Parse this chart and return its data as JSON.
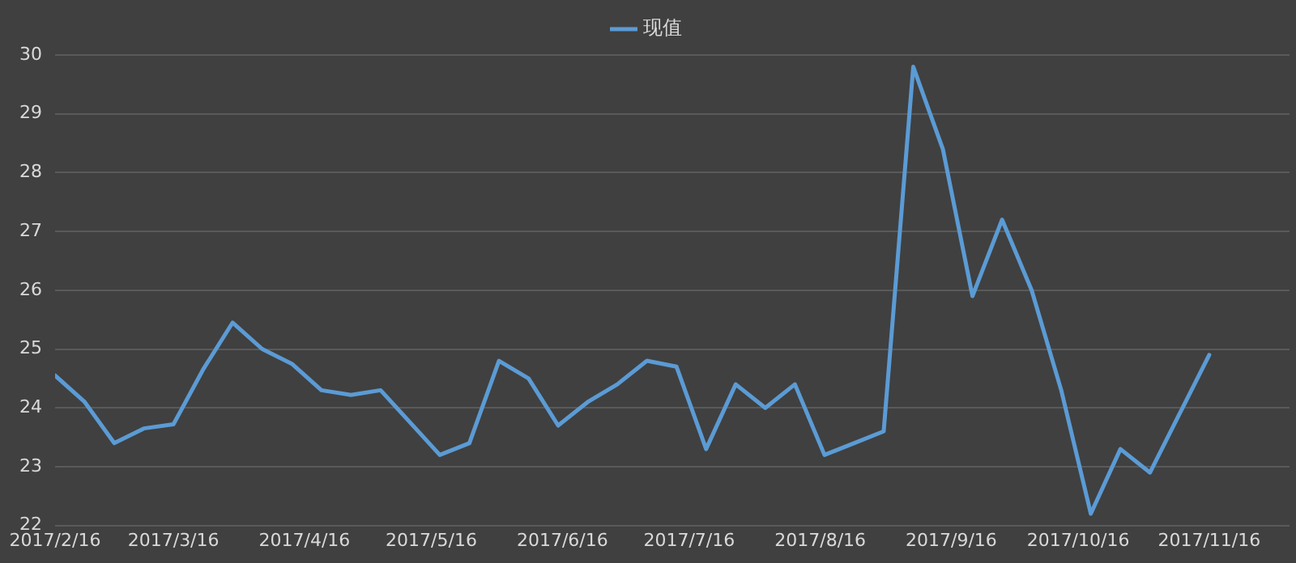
{
  "chart_data": {
    "type": "line",
    "x": [
      "2017-02-16",
      "2017-02-23",
      "2017-03-02",
      "2017-03-09",
      "2017-03-16",
      "2017-03-23",
      "2017-03-30",
      "2017-04-06",
      "2017-04-13",
      "2017-04-20",
      "2017-04-27",
      "2017-05-04",
      "2017-05-11",
      "2017-05-18",
      "2017-05-25",
      "2017-06-01",
      "2017-06-08",
      "2017-06-15",
      "2017-06-22",
      "2017-06-29",
      "2017-07-06",
      "2017-07-13",
      "2017-07-20",
      "2017-07-27",
      "2017-08-03",
      "2017-08-10",
      "2017-08-17",
      "2017-08-24",
      "2017-08-31",
      "2017-09-07",
      "2017-09-14",
      "2017-09-21",
      "2017-09-28",
      "2017-10-05",
      "2017-10-12",
      "2017-10-19",
      "2017-10-26",
      "2017-11-02",
      "2017-11-09",
      "2017-11-16"
    ],
    "series": [
      {
        "name": "现值",
        "color": "#5b9bd5",
        "values": [
          24.55,
          24.1,
          23.4,
          23.65,
          23.72,
          24.65,
          25.45,
          25.0,
          24.75,
          24.3,
          24.22,
          24.3,
          23.75,
          23.2,
          23.4,
          24.8,
          24.5,
          23.7,
          24.1,
          24.4,
          24.8,
          24.7,
          23.3,
          24.4,
          24.0,
          24.4,
          23.2,
          23.4,
          23.6,
          29.8,
          28.4,
          25.9,
          27.2,
          26.0,
          24.3,
          22.2,
          23.3,
          22.9,
          23.9,
          24.9
        ]
      }
    ],
    "xlim": [
      "2017-02-16",
      "2017-12-05"
    ],
    "xticks": [
      {
        "value": "2017-02-16",
        "label": "2017/2/16"
      },
      {
        "value": "2017-03-16",
        "label": "2017/3/16"
      },
      {
        "value": "2017-04-16",
        "label": "2017/4/16"
      },
      {
        "value": "2017-05-16",
        "label": "2017/5/16"
      },
      {
        "value": "2017-06-16",
        "label": "2017/6/16"
      },
      {
        "value": "2017-07-16",
        "label": "2017/7/16"
      },
      {
        "value": "2017-08-16",
        "label": "2017/8/16"
      },
      {
        "value": "2017-09-16",
        "label": "2017/9/16"
      },
      {
        "value": "2017-10-16",
        "label": "2017/10/16"
      },
      {
        "value": "2017-11-16",
        "label": "2017/11/16"
      }
    ],
    "ylim": [
      22,
      30
    ],
    "yticks": [
      22,
      23,
      24,
      25,
      26,
      27,
      28,
      29,
      30
    ],
    "grid": "y",
    "legend": "top",
    "marker": "none",
    "line_style": "solid"
  }
}
